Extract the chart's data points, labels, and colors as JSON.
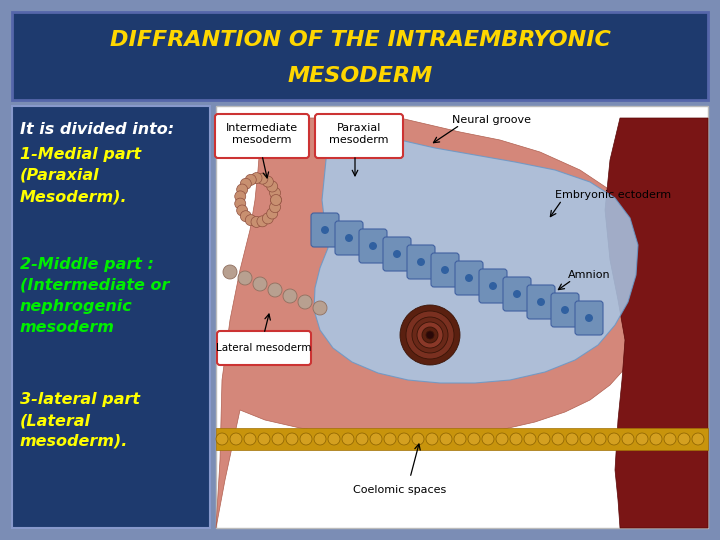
{
  "title_line1": "DIFFRANTION OF THE INTRAEMBRYONIC",
  "title_line2": "MESODERM",
  "title_color": "#FFD700",
  "title_bg_color": "#1E3A6E",
  "title_bg_border": "#5566AA",
  "slide_bg_color": "#7B8DB5",
  "text_panel_bg": "#1E3A6E",
  "text_panel_border": "#8899CC",
  "image_panel_bg": "#FFFFFF",
  "text_items": [
    {
      "text": "It is divided into:",
      "color": "#FFFFFF",
      "style": "italic",
      "weight": "bold"
    },
    {
      "text": "1-Medial part\n(Paraxial\nMesoderm).",
      "color": "#FFFF00",
      "style": "italic",
      "weight": "bold"
    },
    {
      "text": "2-Middle part :\n(Intermediate or\nnephrogenic\nmesoderm",
      "color": "#00EE00",
      "style": "italic",
      "weight": "bold"
    },
    {
      "text": "3-lateral part\n(Lateral\nmesoderm).",
      "color": "#FFFF00",
      "style": "italic",
      "weight": "bold"
    }
  ],
  "title_fontsize": 16,
  "body_fontsize": 11.5,
  "figsize": [
    7.2,
    5.4
  ],
  "dpi": 100
}
